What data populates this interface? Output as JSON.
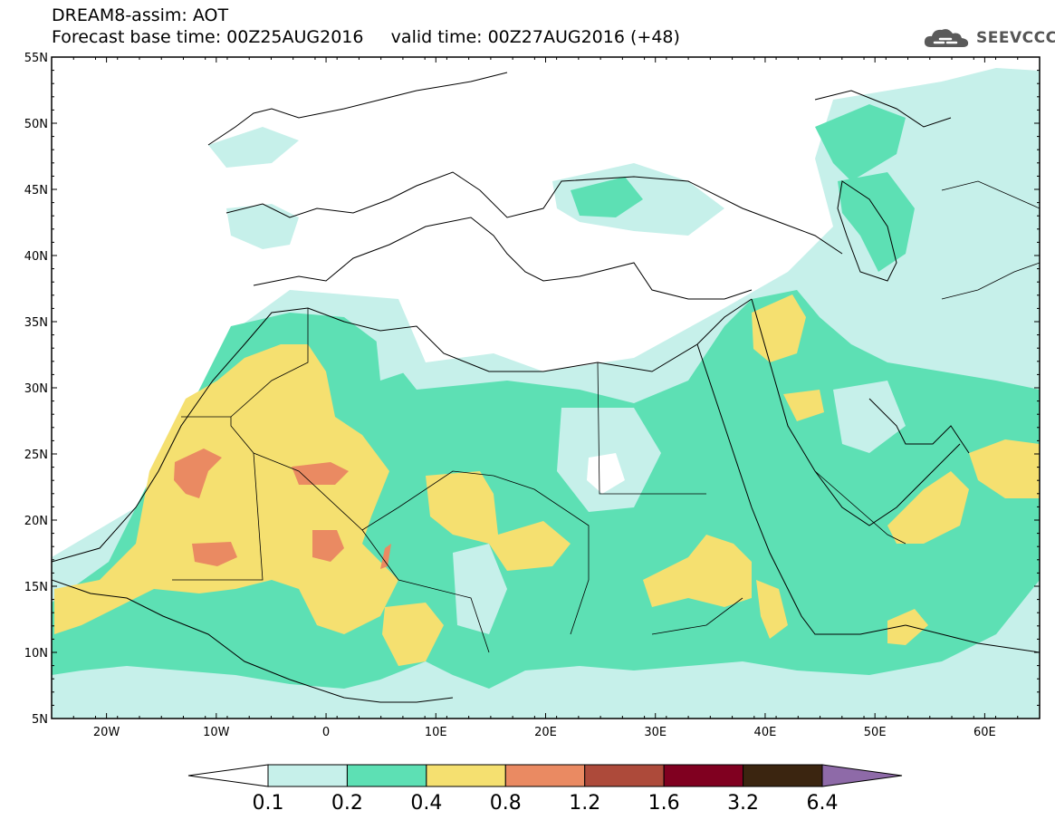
{
  "header": {
    "line1": "DREAM8-assim: AOT",
    "line2": "Forecast base time: 00Z25AUG2016     valid time: 00Z27AUG2016 (+48)"
  },
  "logo": {
    "text": "SEEVCCC",
    "icon": "cloud-icon"
  },
  "axes": {
    "lon_labels": [
      "20W",
      "10W",
      "0",
      "10E",
      "20E",
      "30E",
      "40E",
      "50E",
      "60E"
    ],
    "lat_labels": [
      "55N",
      "50N",
      "45N",
      "40N",
      "35N",
      "30N",
      "25N",
      "20N",
      "15N",
      "10N",
      "5N"
    ]
  },
  "map": {
    "lon_range": [
      -25,
      65
    ],
    "lat_range": [
      5,
      55
    ],
    "variable": "AOT"
  },
  "colorbar": {
    "labels": [
      "0.1",
      "0.2",
      "0.4",
      "0.8",
      "1.2",
      "1.6",
      "3.2",
      "6.4"
    ],
    "colors": [
      "#ffffff",
      "#c6f0ea",
      "#5de0b4",
      "#f5e070",
      "#ea8a62",
      "#ad4a3a",
      "#800020",
      "#3b2510",
      "#8e6aa8"
    ]
  }
}
